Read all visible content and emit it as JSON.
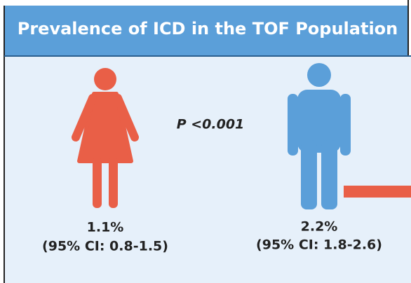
{
  "header": {
    "title": "Prevalence of ICD in the TOF Population"
  },
  "p_value": "P <0.001",
  "groups": [
    {
      "value": "1.1%",
      "ci": "(95% CI: 0.8-1.5)"
    },
    {
      "value": "2.2%",
      "ci": "(95% CI: 1.8-2.6)"
    }
  ]
}
